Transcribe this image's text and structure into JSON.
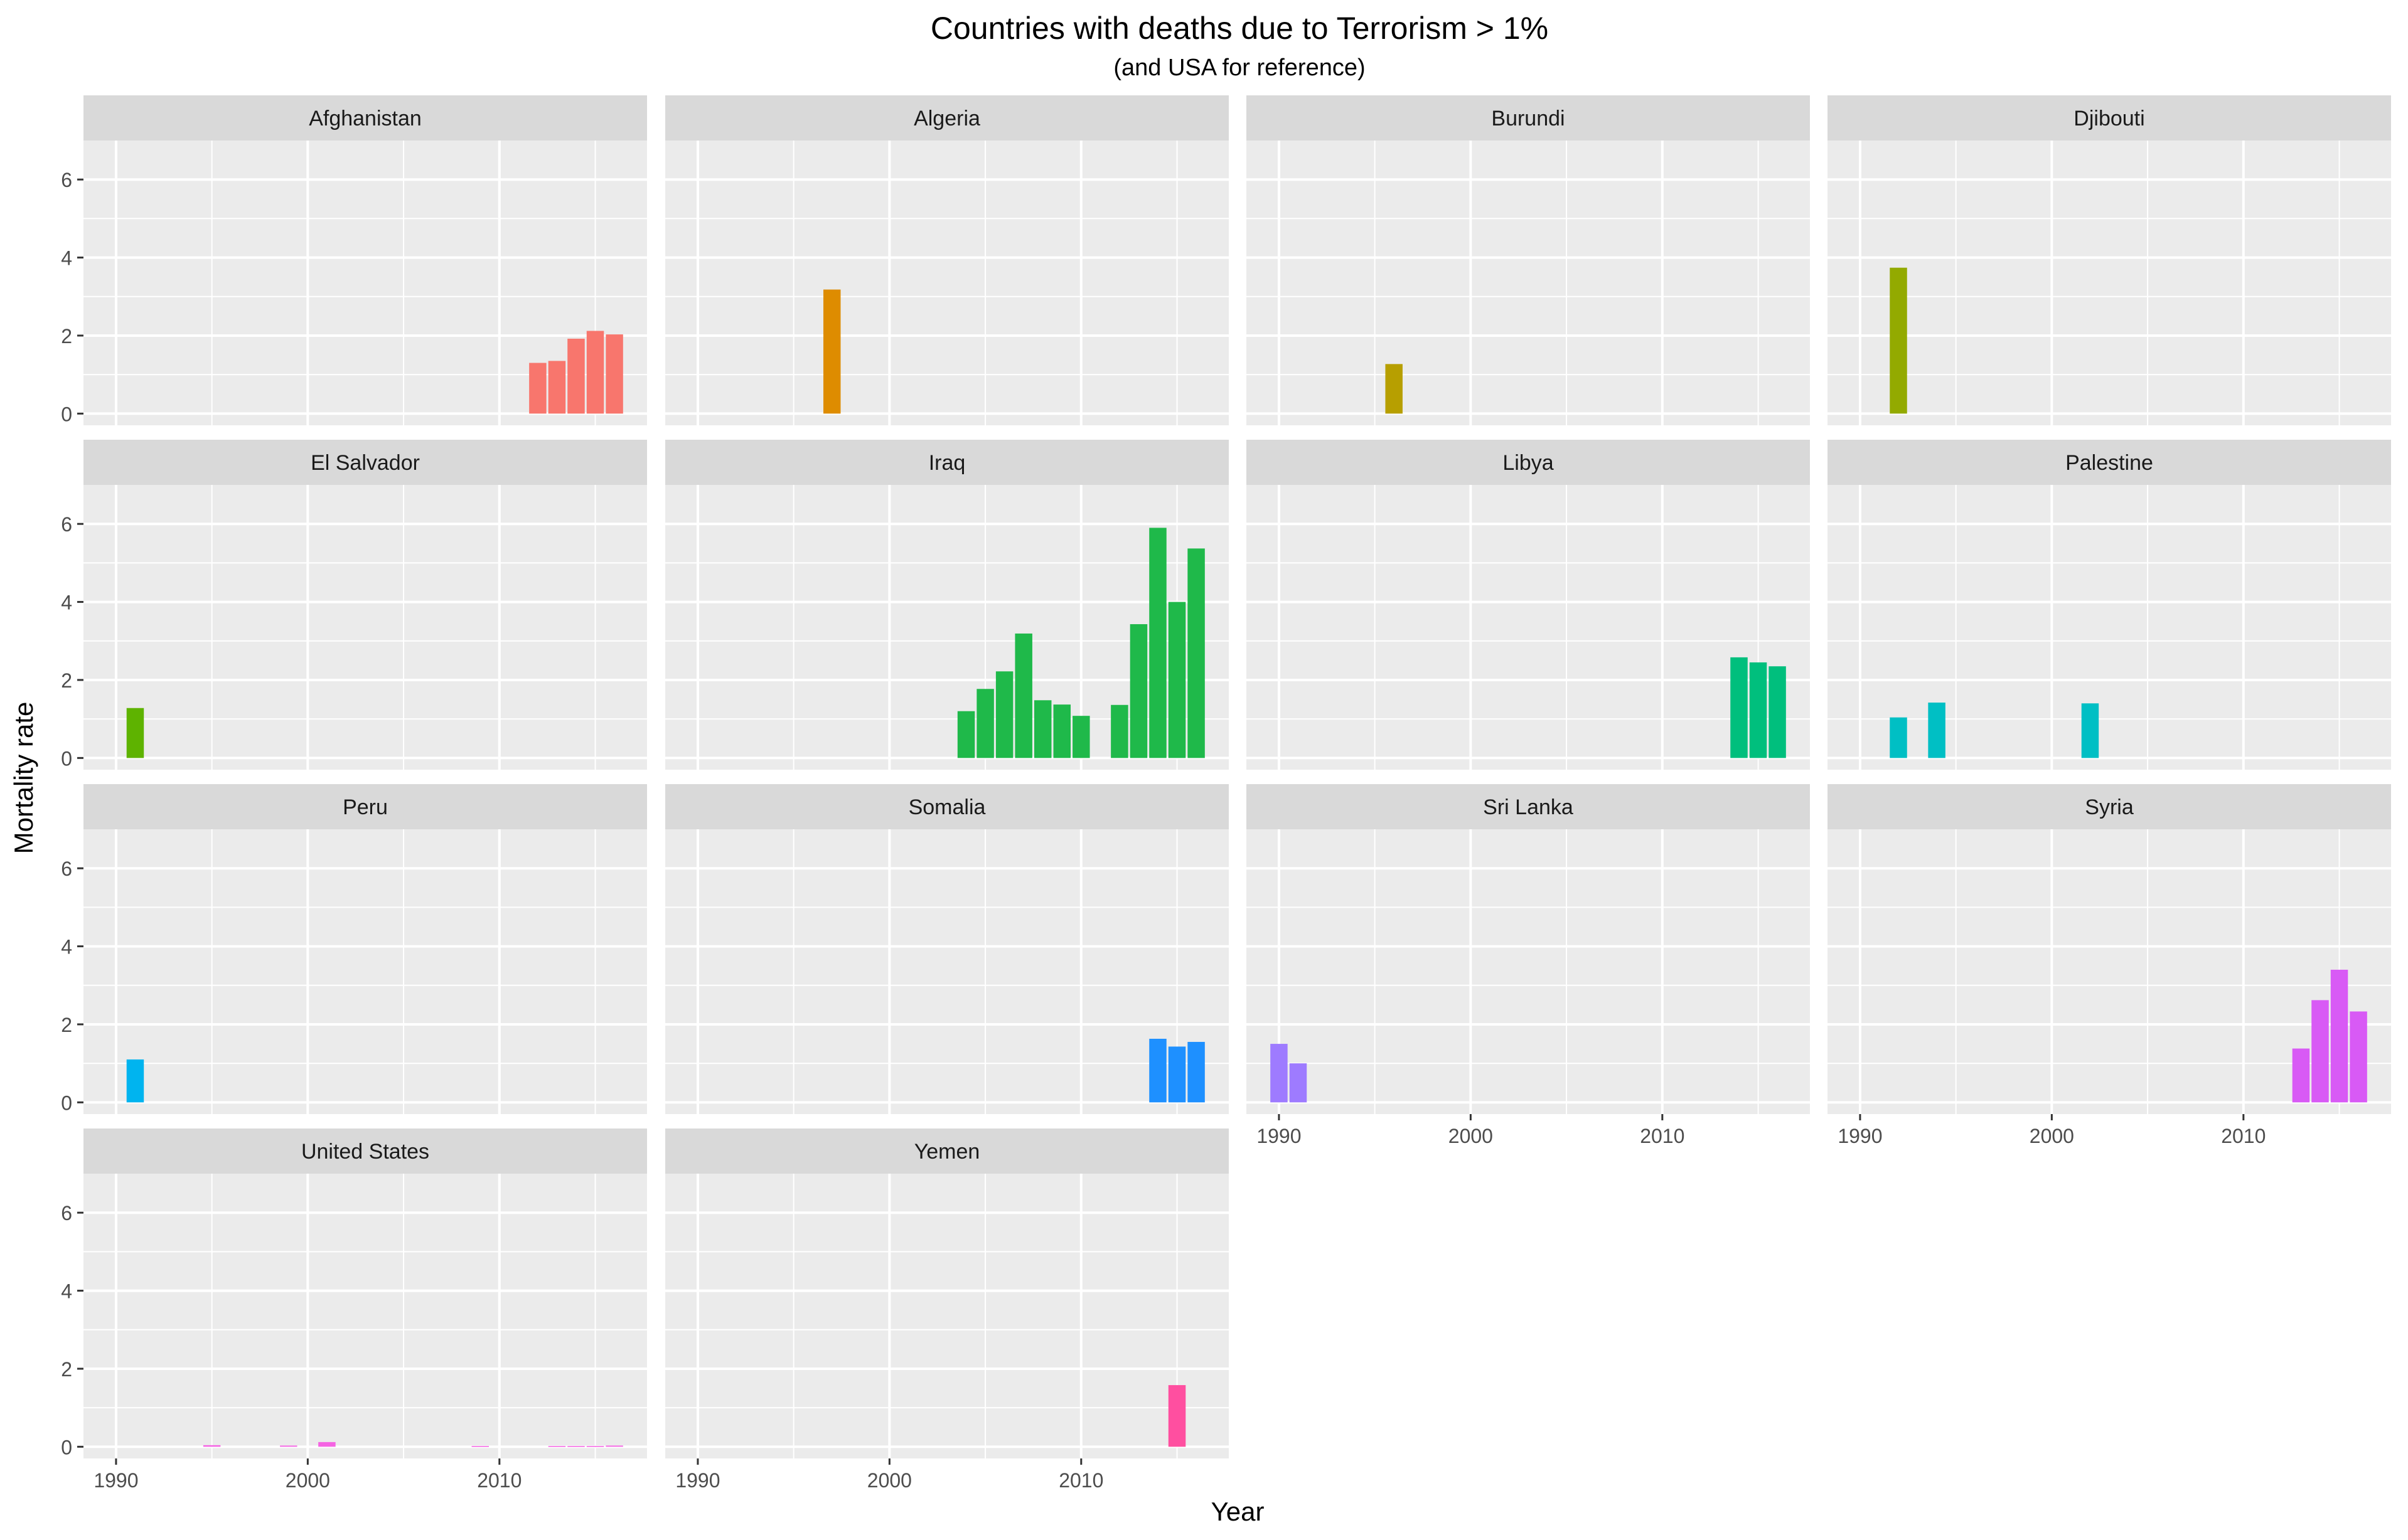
{
  "chart_data": {
    "type": "bar",
    "layout": "facet_wrap",
    "title": "Countries with deaths due to Terrorism > 1%",
    "subtitle": "(and USA for reference)",
    "xlabel": "Year",
    "ylabel": "Mortality rate",
    "xlim": [
      1988.3,
      2017.7
    ],
    "ylim": [
      -0.3,
      7.0
    ],
    "x_ticks": [
      1990,
      2000,
      2010
    ],
    "x_minor_ticks": [
      1995,
      2005,
      2015
    ],
    "y_ticks": [
      0,
      2,
      4,
      6
    ],
    "y_minor_ticks": [
      1,
      3,
      5
    ],
    "grid": true,
    "legend": "none",
    "facets": [
      {
        "name": "Afghanistan",
        "color": "#F8766D",
        "x": [
          2012,
          2013,
          2014,
          2015,
          2016
        ],
        "values": [
          1.3,
          1.35,
          1.92,
          2.12,
          2.03
        ]
      },
      {
        "name": "Algeria",
        "color": "#DE8C00",
        "x": [
          1997
        ],
        "values": [
          3.18
        ]
      },
      {
        "name": "Burundi",
        "color": "#B79F00",
        "x": [
          1996
        ],
        "values": [
          1.27
        ]
      },
      {
        "name": "Djibouti",
        "color": "#93AA00",
        "x": [
          1992
        ],
        "values": [
          3.74
        ]
      },
      {
        "name": "El Salvador",
        "color": "#5EB300",
        "x": [
          1991
        ],
        "values": [
          1.28
        ]
      },
      {
        "name": "Iraq",
        "color": "#1FB94A",
        "x": [
          2004,
          2005,
          2006,
          2007,
          2008,
          2009,
          2010,
          2012,
          2013,
          2014,
          2015,
          2016
        ],
        "values": [
          1.2,
          1.77,
          2.22,
          3.19,
          1.48,
          1.37,
          1.08,
          1.36,
          3.43,
          5.9,
          4.0,
          5.37
        ]
      },
      {
        "name": "Libya",
        "color": "#00BF7D",
        "x": [
          2014,
          2015,
          2016
        ],
        "values": [
          2.58,
          2.45,
          2.35
        ]
      },
      {
        "name": "Palestine",
        "color": "#00BFC4",
        "x": [
          1992,
          1994,
          2002
        ],
        "values": [
          1.04,
          1.42,
          1.4
        ]
      },
      {
        "name": "Peru",
        "color": "#00B4EF",
        "x": [
          1991
        ],
        "values": [
          1.1
        ]
      },
      {
        "name": "Somalia",
        "color": "#1E90FF",
        "x": [
          2014,
          2015,
          2016
        ],
        "values": [
          1.63,
          1.43,
          1.55
        ]
      },
      {
        "name": "Sri Lanka",
        "color": "#9E7BFF",
        "x": [
          1990,
          1991
        ],
        "values": [
          1.5,
          1.0
        ]
      },
      {
        "name": "Syria",
        "color": "#D85AF5",
        "x": [
          2013,
          2014,
          2015,
          2016
        ],
        "values": [
          1.38,
          2.62,
          3.4,
          2.33
        ]
      },
      {
        "name": "United States",
        "color": "#F564E3",
        "x": [
          1995,
          1999,
          2001,
          2009,
          2013,
          2014,
          2015,
          2016
        ],
        "values": [
          0.04,
          0.03,
          0.12,
          0.02,
          0.02,
          0.02,
          0.02,
          0.03
        ]
      },
      {
        "name": "Yemen",
        "color": "#FF4FA0",
        "x": [
          2015
        ],
        "values": [
          1.58
        ]
      }
    ]
  }
}
